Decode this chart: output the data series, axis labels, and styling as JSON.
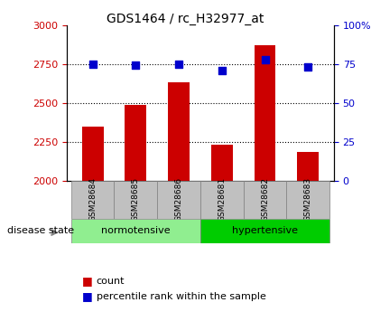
{
  "title": "GDS1464 / rc_H32977_at",
  "samples": [
    "GSM28684",
    "GSM28685",
    "GSM28686",
    "GSM28681",
    "GSM28682",
    "GSM28683"
  ],
  "counts": [
    2350,
    2490,
    2630,
    2230,
    2870,
    2185
  ],
  "percentiles": [
    75,
    74,
    75,
    71,
    78,
    73
  ],
  "ylim_left": [
    2000,
    3000
  ],
  "ylim_right": [
    0,
    100
  ],
  "yticks_left": [
    2000,
    2250,
    2500,
    2750,
    3000
  ],
  "yticks_right": [
    0,
    25,
    50,
    75,
    100
  ],
  "ytick_labels_right": [
    "0",
    "25",
    "50",
    "75",
    "100%"
  ],
  "group_labels": [
    "normotensive",
    "hypertensive"
  ],
  "group_ranges": [
    [
      0,
      3
    ],
    [
      3,
      6
    ]
  ],
  "group_colors": [
    "#90EE90",
    "#00CC00"
  ],
  "bar_color": "#CC0000",
  "dot_color": "#0000CC",
  "tick_label_color_left": "#CC0000",
  "tick_label_color_right": "#0000CC",
  "disease_state_label": "disease state",
  "legend_count_label": "count",
  "legend_percentile_label": "percentile rank within the sample",
  "bar_width": 0.5,
  "grid_color": "black",
  "grid_linestyle": "dotted"
}
